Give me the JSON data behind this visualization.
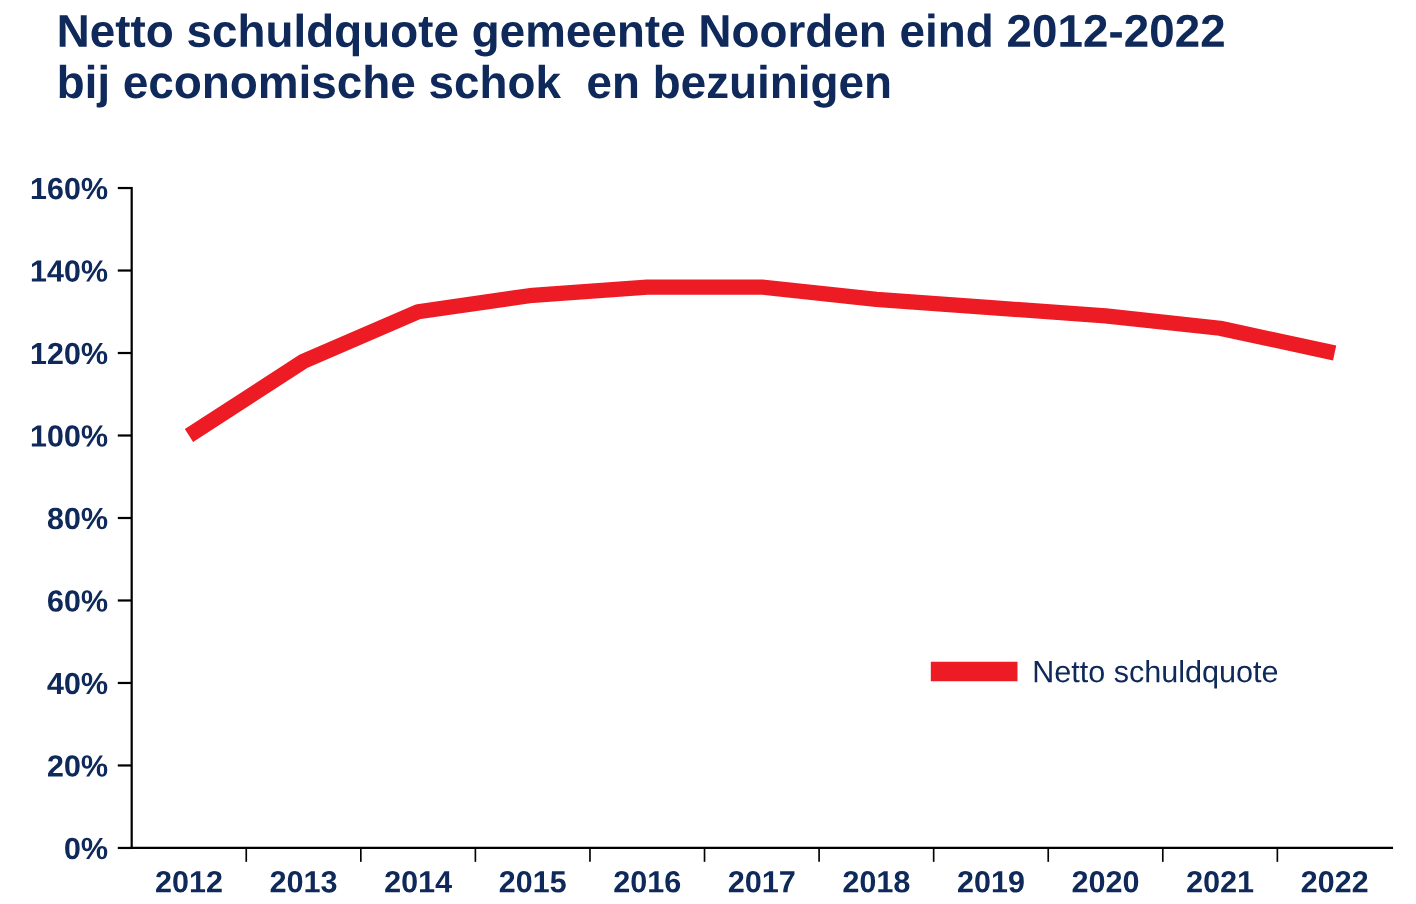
{
  "chart_data": {
    "type": "line",
    "title": "Netto schuldquote gemeente Noorden eind 2012-2022\nbij economische schok  en bezuinigen",
    "categories": [
      "2012",
      "2013",
      "2014",
      "2015",
      "2016",
      "2017",
      "2018",
      "2019",
      "2020",
      "2021",
      "2022"
    ],
    "series": [
      {
        "name": "Netto schuldquote",
        "color": "#ed1c24",
        "values": [
          100,
          118,
          130,
          134,
          136,
          136,
          133,
          131,
          129,
          126,
          120
        ]
      }
    ],
    "ylim": [
      0,
      160
    ],
    "yticks": [
      {
        "value": 0,
        "label": "0%"
      },
      {
        "value": 20,
        "label": "20%"
      },
      {
        "value": 40,
        "label": "40%"
      },
      {
        "value": 60,
        "label": "60%"
      },
      {
        "value": 80,
        "label": "80%"
      },
      {
        "value": 100,
        "label": "100%"
      },
      {
        "value": 120,
        "label": "120%"
      },
      {
        "value": 140,
        "label": "140%"
      },
      {
        "value": 160,
        "label": "160%"
      }
    ],
    "grid": false,
    "legend": "right",
    "marker": "none",
    "line_style": "solid"
  }
}
